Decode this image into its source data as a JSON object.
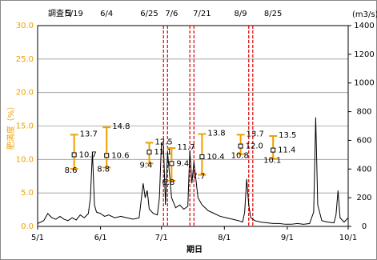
{
  "chart_data": {
    "type": "survey-discharge",
    "y_label": "肥満度（%）",
    "y2_label": "(m3/s)",
    "x_label": "期日",
    "survey_label": "調査日",
    "xlim": [
      0,
      153
    ],
    "xticks": [
      {
        "value": 0,
        "label": "5/1"
      },
      {
        "value": 31,
        "label": "6/1"
      },
      {
        "value": 61,
        "label": "7/1"
      },
      {
        "value": 92,
        "label": "8/1"
      },
      {
        "value": 123,
        "label": "9/1"
      },
      {
        "value": 153,
        "label": "10/1"
      }
    ],
    "ylim": [
      0,
      30
    ],
    "yticks": [
      {
        "value": 0,
        "label": "0.0"
      },
      {
        "value": 5,
        "label": "5.0"
      },
      {
        "value": 10,
        "label": "10.0"
      },
      {
        "value": 15,
        "label": "15.0"
      },
      {
        "value": 20,
        "label": "20.0"
      },
      {
        "value": 25,
        "label": "25.0"
      },
      {
        "value": 30,
        "label": "30.0"
      }
    ],
    "y2lim": [
      0,
      1400
    ],
    "y2ticks": [
      0,
      200,
      400,
      600,
      800,
      1000,
      1200,
      1400
    ],
    "grid": true,
    "axis_color": "#f0a000",
    "survey": {
      "color": "#f0a000",
      "dates": [
        "5/19",
        "6/4",
        "6/25",
        "7/6",
        "7/21",
        "8/9",
        "8/25"
      ],
      "x": [
        18,
        34,
        55,
        66,
        81,
        100,
        116
      ],
      "values": [
        10.7,
        10.6,
        11.1,
        9.4,
        10.4,
        12.0,
        11.4
      ],
      "value_labels": [
        "10.7",
        "10.6",
        "11.1",
        "9.4",
        "10.4",
        "12.0",
        "11.4"
      ],
      "high": [
        13.7,
        14.8,
        12.5,
        11.7,
        13.8,
        13.7,
        13.5
      ],
      "low": [
        8.6,
        8.8,
        9.4,
        6.8,
        7.7,
        10.8,
        10.1
      ]
    },
    "highlight_x": [
      [
        62,
        64
      ],
      [
        75,
        77
      ],
      [
        104,
        106
      ]
    ],
    "highlight_color": "#e00000",
    "discharge": {
      "axis": "y2",
      "color": "#000000",
      "x": [
        0,
        3,
        5,
        7,
        9,
        11,
        13,
        15,
        17,
        19,
        21,
        23,
        25,
        26,
        27,
        28,
        29,
        31,
        33,
        35,
        38,
        41,
        44,
        47,
        50,
        52,
        53,
        54,
        55,
        57,
        59,
        60,
        61,
        62,
        63,
        64,
        66,
        68,
        70,
        72,
        74,
        75,
        76,
        77,
        79,
        81,
        84,
        87,
        90,
        93,
        96,
        99,
        101,
        102,
        103,
        104,
        105,
        107,
        110,
        113,
        116,
        119,
        122,
        125,
        128,
        131,
        134,
        136,
        137,
        138,
        140,
        143,
        146,
        147,
        148,
        149,
        151,
        153
      ],
      "values": [
        20,
        40,
        90,
        60,
        50,
        70,
        50,
        40,
        60,
        45,
        80,
        60,
        90,
        200,
        520,
        150,
        100,
        90,
        70,
        80,
        60,
        70,
        60,
        50,
        60,
        300,
        200,
        250,
        120,
        90,
        80,
        200,
        580,
        560,
        150,
        520,
        200,
        130,
        150,
        120,
        140,
        530,
        300,
        450,
        200,
        150,
        110,
        90,
        70,
        60,
        50,
        40,
        30,
        100,
        330,
        150,
        60,
        40,
        30,
        25,
        20,
        20,
        15,
        15,
        20,
        15,
        20,
        100,
        760,
        150,
        40,
        30,
        25,
        80,
        250,
        60,
        30,
        60
      ]
    }
  }
}
